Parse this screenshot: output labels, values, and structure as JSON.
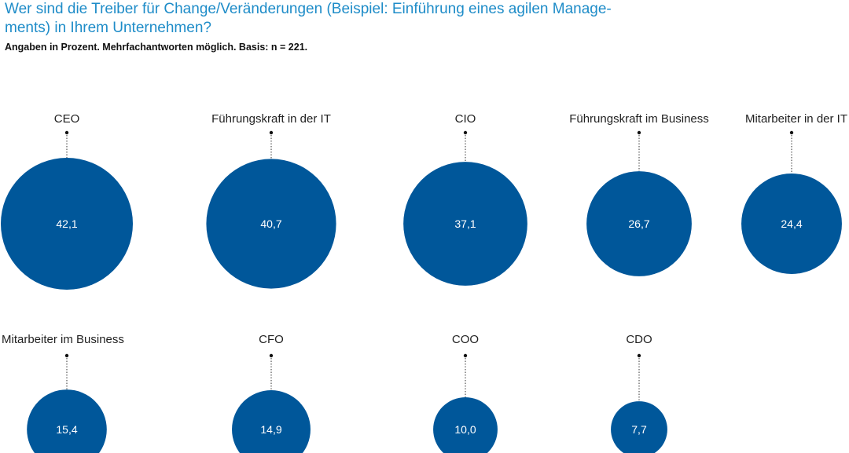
{
  "title_line1": "Wer sind die Treiber für Change/Veränderungen (Beispiel: Einführung eines agilen Manage-",
  "title_line2": "ments) in Ihrem Unternehmen?",
  "subtitle": "Angaben in Prozent. Mehrfachantworten möglich. Basis: n = 221.",
  "colors": {
    "bubble": "#00579a",
    "title": "#1e8cc8"
  },
  "chart_data": {
    "type": "bubble",
    "unit": "Prozent",
    "categories": [
      "CEO",
      "Führungskraft in der IT",
      "CIO",
      "Führungskraft im Business",
      "Mitarbeiter in der IT",
      "Mitarbeiter im Business",
      "CFO",
      "COO",
      "CDO"
    ],
    "values": [
      42.1,
      40.7,
      37.1,
      26.7,
      24.4,
      15.4,
      14.9,
      10.0,
      7.7
    ],
    "value_labels": [
      "42,1",
      "40,7",
      "37,1",
      "26,7",
      "24,4",
      "15,4",
      "14,9",
      "10,0",
      "7,7"
    ]
  }
}
